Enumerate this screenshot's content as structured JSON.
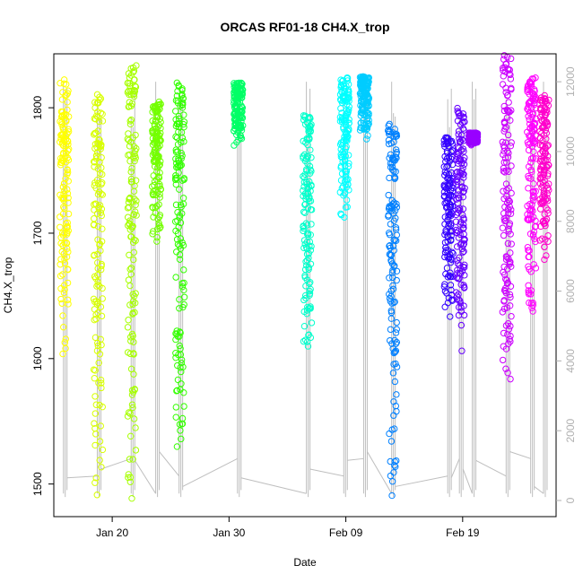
{
  "chart_data": {
    "type": "scatter",
    "title": "ORCAS RF01-18 CH4.X_trop",
    "xlabel": "Date",
    "ylabel": "CH4.X_trop",
    "x_ticks": [
      "Jan 20",
      "Jan 30",
      "Feb 09",
      "Feb 19"
    ],
    "y_ticks": [
      1500,
      1600,
      1700,
      1800
    ],
    "y_right_ticks": [
      0,
      2000,
      4000,
      6000,
      8000,
      10000,
      12000
    ],
    "xlim_days": [
      15,
      43
    ],
    "ylim": [
      1474,
      1843
    ],
    "y_right_lim": [
      0,
      12800
    ],
    "marker": "open-circle",
    "altitude_color": "#bebebe",
    "series": [
      {
        "date": "Jan 16",
        "day": 15.9,
        "y_range": [
          1590,
          1823
        ],
        "color": "#ffff00"
      },
      {
        "date": "Jan 19",
        "day": 18.8,
        "y_range": [
          1476,
          1812
        ],
        "color": "#d8ff00"
      },
      {
        "date": "Jan 22",
        "day": 21.7,
        "y_range": [
          1480,
          1836
        ],
        "color": "#a6ff00"
      },
      {
        "date": "Jan 24",
        "day": 23.8,
        "y_range": [
          1690,
          1805
        ],
        "color": "#73ff00"
      },
      {
        "date": "Jan 26",
        "day": 25.8,
        "y_range": [
          1505,
          1820
        ],
        "color": "#33ff00"
      },
      {
        "date": "Jan 31",
        "day": 30.8,
        "y_range": [
          1768,
          1820
        ],
        "color": "#00ff66"
      },
      {
        "date": "Feb 06",
        "day": 36.7,
        "y_range": [
          1596,
          1795
        ],
        "color": "#00ffcc"
      },
      {
        "date": "Feb 10",
        "day": 39.9,
        "y_range": [
          1712,
          1825
        ],
        "color": "#00ffff"
      },
      {
        "date": "Feb 11",
        "day": 41.6,
        "y_range": [
          1772,
          1825
        ],
        "color": "#00ccff"
      },
      {
        "date": "Feb 14",
        "day": 44.0,
        "y_range": [
          1475,
          1787
        ],
        "color": "#0080ff"
      },
      {
        "date": "Feb 18",
        "day": 48.8,
        "y_range": [
          1630,
          1778
        ],
        "color": "#3300ff"
      },
      {
        "date": "Feb 19",
        "day": 49.8,
        "y_range": [
          1600,
          1800
        ],
        "color": "#6600ff"
      },
      {
        "date": "Feb 21",
        "day": 50.9,
        "y_range": [
          1770,
          1780
        ],
        "color": "#9900ff"
      },
      {
        "date": "Feb 24",
        "day": 53.8,
        "y_range": [
          1568,
          1843
        ],
        "color": "#cc00ff"
      },
      {
        "date": "Feb 26",
        "day": 55.9,
        "y_range": [
          1632,
          1824
        ],
        "color": "#ff00ff"
      },
      {
        "date": "Feb 27",
        "day": 57.0,
        "y_range": [
          1677,
          1810
        ],
        "color": "#ff00cc"
      }
    ]
  }
}
